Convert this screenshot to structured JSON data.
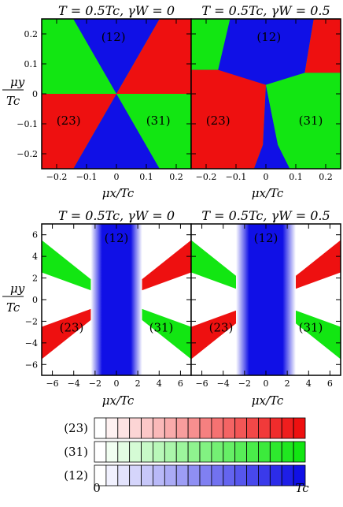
{
  "figure": {
    "panels": [
      {
        "id": "top-left",
        "title": "T = 0.5Tc, γW = 0",
        "kind": "sharp",
        "gammaW": 0,
        "xlim": [
          -0.25,
          0.25
        ],
        "ylim": [
          -0.25,
          0.25
        ],
        "xticks": [
          -0.2,
          -0.1,
          0,
          0.1,
          0.2
        ],
        "xticklabels": [
          "−0.2",
          "−0.1",
          "0",
          "0.1",
          "0.2"
        ],
        "yticks": [
          -0.2,
          -0.1,
          0,
          0.1,
          0.2
        ],
        "yticklabels": [
          "−0.2",
          "−0.1",
          "0",
          "0.1",
          "0.2"
        ],
        "show_yticklabels": true,
        "region_labels": [
          {
            "phase": "(12)",
            "x": -0.01,
            "y": 0.19
          },
          {
            "phase": "(23)",
            "x": -0.16,
            "y": -0.09
          },
          {
            "phase": "(31)",
            "x": 0.14,
            "y": -0.09
          }
        ]
      },
      {
        "id": "top-right",
        "title": "T = 0.5Tc, γW = 0.5",
        "kind": "sharp",
        "gammaW": 0.5,
        "xlim": [
          -0.25,
          0.25
        ],
        "ylim": [
          -0.25,
          0.25
        ],
        "xticks": [
          -0.2,
          -0.1,
          0,
          0.1,
          0.2
        ],
        "xticklabels": [
          "−0.2",
          "−0.1",
          "0",
          "0.1",
          "0.2"
        ],
        "yticks": [
          -0.2,
          -0.1,
          0,
          0.1,
          0.2
        ],
        "yticklabels": [],
        "show_yticklabels": false,
        "region_labels": [
          {
            "phase": "(12)",
            "x": 0.01,
            "y": 0.19
          },
          {
            "phase": "(23)",
            "x": -0.16,
            "y": -0.09
          },
          {
            "phase": "(31)",
            "x": 0.15,
            "y": -0.09
          }
        ]
      },
      {
        "id": "bottom-left",
        "title": "T = 0.5Tc, γW = 0",
        "kind": "band",
        "gammaW": 0,
        "xlim": [
          -7,
          7
        ],
        "ylim": [
          -7,
          7
        ],
        "xticks": [
          -6,
          -4,
          -2,
          0,
          2,
          4,
          6
        ],
        "xticklabels": [
          "−6",
          "−4",
          "−2",
          "0",
          "2",
          "4",
          "6"
        ],
        "yticks": [
          -6,
          -4,
          -2,
          0,
          2,
          4,
          6
        ],
        "yticklabels": [
          "−6",
          "−4",
          "−2",
          "0",
          "2",
          "4",
          "6"
        ],
        "show_yticklabels": true,
        "region_labels": [
          {
            "phase": "(12)",
            "x": 0,
            "y": 5.7
          },
          {
            "phase": "(23)",
            "x": -4.2,
            "y": -2.6
          },
          {
            "phase": "(31)",
            "x": 4.2,
            "y": -2.6
          }
        ]
      },
      {
        "id": "bottom-right",
        "title": "T = 0.5Tc, γW = 0.5",
        "kind": "band",
        "gammaW": 0.5,
        "xlim": [
          -7,
          7
        ],
        "ylim": [
          -7,
          7
        ],
        "xticks": [
          -6,
          -4,
          -2,
          0,
          2,
          4,
          6
        ],
        "xticklabels": [
          "−6",
          "−4",
          "−2",
          "0",
          "2",
          "4",
          "6"
        ],
        "yticks": [
          -6,
          -4,
          -2,
          0,
          2,
          4,
          6
        ],
        "yticklabels": [],
        "show_yticklabels": false,
        "region_labels": [
          {
            "phase": "(12)",
            "x": 0,
            "y": 5.7
          },
          {
            "phase": "(23)",
            "x": -4.2,
            "y": -2.6
          },
          {
            "phase": "(31)",
            "x": 4.2,
            "y": -2.6
          }
        ]
      }
    ],
    "xlabel": "μx/Tc",
    "ylabel_num": "μy",
    "ylabel_den": "Tc",
    "phase_colors": {
      "(12)": "#1010e6",
      "(23)": "#ee1010",
      "(31)": "#12e612"
    },
    "colorbar": {
      "rows": [
        "(23)",
        "(31)",
        "(12)"
      ],
      "cells": 18,
      "min_label": "0",
      "max_label": "Tc"
    }
  }
}
